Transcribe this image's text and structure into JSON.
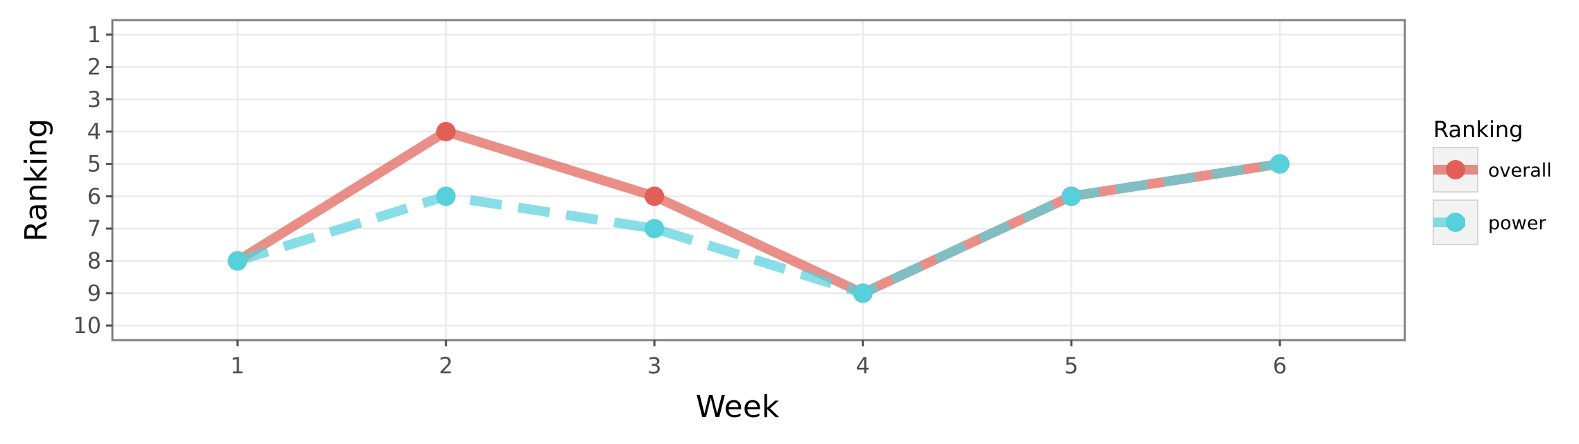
{
  "chart_data": {
    "type": "line",
    "xlabel": "Week",
    "ylabel": "Ranking",
    "x": [
      1,
      2,
      3,
      4,
      5,
      6
    ],
    "xlim": [
      0.4,
      6.6
    ],
    "ylim": [
      10.45,
      0.55
    ],
    "y_reversed": true,
    "x_ticks": [
      1,
      2,
      3,
      4,
      5,
      6
    ],
    "y_ticks": [
      1,
      2,
      3,
      4,
      5,
      6,
      7,
      8,
      9,
      10
    ],
    "grid": true,
    "legend": {
      "title": "Ranking",
      "position": "right"
    },
    "series": [
      {
        "name": "overall",
        "values": [
          8,
          4,
          6,
          9,
          6,
          5
        ],
        "color": "#e15f56",
        "line_style": "solid"
      },
      {
        "name": "power",
        "values": [
          8,
          6,
          7,
          9,
          6,
          5
        ],
        "color": "#56d0db",
        "line_style": "dashed"
      }
    ]
  }
}
